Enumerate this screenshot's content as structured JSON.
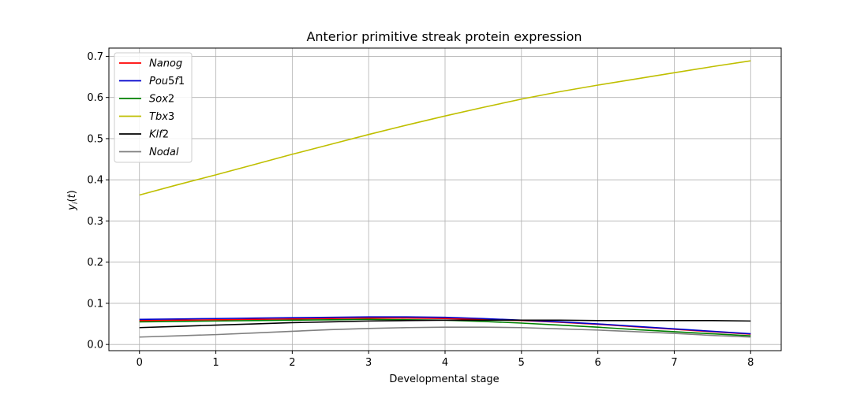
{
  "chart_data": {
    "type": "line",
    "title": "Anterior primitive streak protein expression",
    "xlabel": "Developmental stage",
    "ylabel": "y_i(t)",
    "xlim": [
      -0.4,
      8.4
    ],
    "ylim": [
      -0.015,
      0.72
    ],
    "xticks": [
      0,
      1,
      2,
      3,
      4,
      5,
      6,
      7,
      8
    ],
    "yticks": [
      0.0,
      0.1,
      0.2,
      0.3,
      0.4,
      0.5,
      0.6,
      0.7
    ],
    "grid": true,
    "legend_position": "top-left",
    "x": [
      0,
      0.5,
      1,
      1.5,
      2,
      2.5,
      3,
      3.5,
      4,
      4.5,
      5,
      5.5,
      6,
      6.5,
      7,
      7.5,
      8
    ],
    "series": [
      {
        "name": "Nanog",
        "color": "#ff0000",
        "values": [
          0.058,
          0.059,
          0.06,
          0.061,
          0.062,
          0.063,
          0.064,
          0.064,
          0.063,
          0.061,
          0.058,
          0.054,
          0.049,
          0.043,
          0.037,
          0.031,
          0.025
        ]
      },
      {
        "name": "Pou5f1",
        "color": "#0000cc",
        "values": [
          0.061,
          0.062,
          0.063,
          0.064,
          0.065,
          0.066,
          0.067,
          0.067,
          0.066,
          0.063,
          0.059,
          0.055,
          0.05,
          0.044,
          0.038,
          0.032,
          0.026
        ]
      },
      {
        "name": "Sox2",
        "color": "#008000",
        "values": [
          0.055,
          0.056,
          0.057,
          0.058,
          0.059,
          0.06,
          0.061,
          0.06,
          0.059,
          0.056,
          0.052,
          0.047,
          0.042,
          0.036,
          0.031,
          0.026,
          0.021
        ]
      },
      {
        "name": "Tbx3",
        "color": "#bfbf00",
        "values": [
          0.363,
          0.388,
          0.412,
          0.437,
          0.462,
          0.486,
          0.51,
          0.533,
          0.555,
          0.576,
          0.596,
          0.614,
          0.63,
          0.645,
          0.66,
          0.675,
          0.689
        ]
      },
      {
        "name": "Klf2",
        "color": "#000000",
        "values": [
          0.041,
          0.044,
          0.047,
          0.05,
          0.053,
          0.055,
          0.057,
          0.058,
          0.059,
          0.059,
          0.059,
          0.059,
          0.058,
          0.058,
          0.058,
          0.058,
          0.057
        ]
      },
      {
        "name": "Nodal",
        "color": "#808080",
        "values": [
          0.018,
          0.021,
          0.024,
          0.028,
          0.032,
          0.036,
          0.039,
          0.041,
          0.042,
          0.042,
          0.041,
          0.038,
          0.035,
          0.031,
          0.027,
          0.022,
          0.018
        ]
      }
    ]
  }
}
